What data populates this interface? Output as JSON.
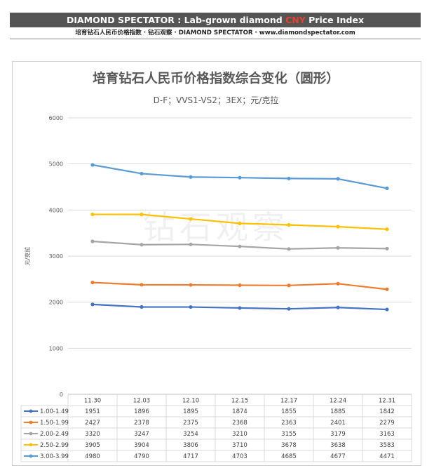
{
  "header": {
    "brand": "DIAMOND SPECTATOR",
    "separator": " : ",
    "title_prefix": "Lab-grown diamond ",
    "currency": "CNY",
    "title_suffix": " Price Index",
    "subline": "培育钻石人民币价格指数 · 钻石观察 · DIAMOND SPECTATOR · www.diamondspectator.com"
  },
  "colors": {
    "banner_bg": "#555555",
    "accent": "#e8412a",
    "series": [
      "#4472c4",
      "#ed7d31",
      "#a5a5a5",
      "#ffc000",
      "#5b9bd5"
    ]
  },
  "watermark": "钻石观察",
  "chart_data": {
    "type": "line",
    "title": "培育钻石人民币价格指数综合变化（圆形）",
    "subtitle": "D-F；VVS1-VS2；3EX；元/克拉",
    "xlabel": "",
    "ylabel": "元/克拉",
    "ylim": [
      0,
      6000
    ],
    "yticks": [
      0,
      1000,
      2000,
      3000,
      4000,
      5000,
      6000
    ],
    "grid": true,
    "legend": "data-table",
    "categories": [
      "11.30",
      "12.03",
      "12.10",
      "12.15",
      "12.17",
      "12.24",
      "12.31"
    ],
    "series": [
      {
        "name": "1.00-1.49",
        "values": [
          1951,
          1896,
          1895,
          1874,
          1855,
          1885,
          1842
        ]
      },
      {
        "name": "1.50-1.99",
        "values": [
          2427,
          2378,
          2375,
          2368,
          2363,
          2401,
          2279
        ]
      },
      {
        "name": "2.00-2.49",
        "values": [
          3320,
          3247,
          3254,
          3210,
          3155,
          3179,
          3163
        ]
      },
      {
        "name": "2.50-2.99",
        "values": [
          3905,
          3904,
          3806,
          3710,
          3678,
          3638,
          3583
        ]
      },
      {
        "name": "3.00-3.99",
        "values": [
          4980,
          4790,
          4717,
          4703,
          4685,
          4677,
          4471
        ]
      }
    ]
  }
}
